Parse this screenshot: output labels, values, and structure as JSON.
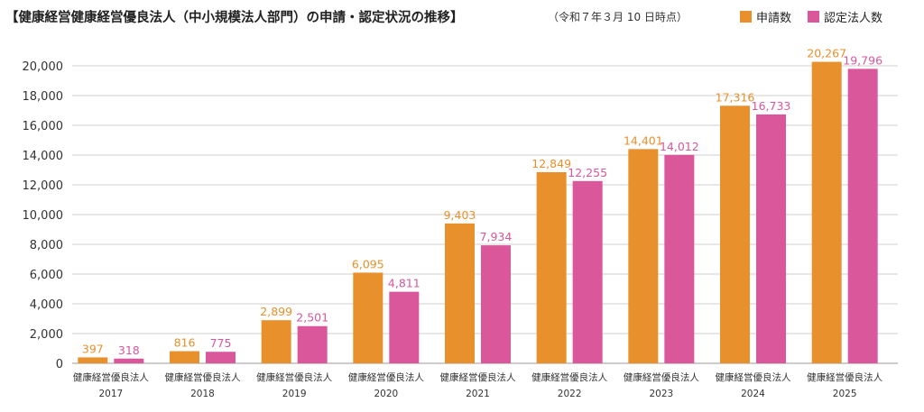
{
  "chart_data": {
    "type": "bar",
    "title": "【健康経営健康経営優良法人（中小規模法人部門）の申請・認定状況の推移】",
    "subtitle": "（令和７年３月 10 日時点）",
    "category_name": "健康経営優良法人",
    "categories": [
      "2017",
      "2018",
      "2019",
      "2020",
      "2021",
      "2022",
      "2023",
      "2024",
      "2025"
    ],
    "series": [
      {
        "name": "申請数",
        "color": "#E8902C",
        "values": [
          397,
          816,
          2899,
          6095,
          9403,
          12849,
          14401,
          17316,
          20267
        ],
        "labels": [
          "397",
          "816",
          "2,899",
          "6,095",
          "9,403",
          "12,849",
          "14,401",
          "17,316",
          "20,267"
        ]
      },
      {
        "name": "認定法人数",
        "color": "#D9579A",
        "values": [
          318,
          775,
          2501,
          4811,
          7934,
          12255,
          14012,
          16733,
          19796
        ],
        "labels": [
          "318",
          "775",
          "2,501",
          "4,811",
          "7,934",
          "12,255",
          "14,012",
          "16,733",
          "19,796"
        ]
      }
    ],
    "ylim": [
      0,
      20000
    ],
    "yticks": [
      0,
      2000,
      4000,
      6000,
      8000,
      10000,
      12000,
      14000,
      16000,
      18000,
      20000
    ],
    "ytick_labels": [
      "0",
      "2,000",
      "4,000",
      "6,000",
      "8,000",
      "10,000",
      "12,000",
      "14,000",
      "16,000",
      "18,000",
      "20,000"
    ],
    "grid": true,
    "legend_position": "top-right"
  }
}
